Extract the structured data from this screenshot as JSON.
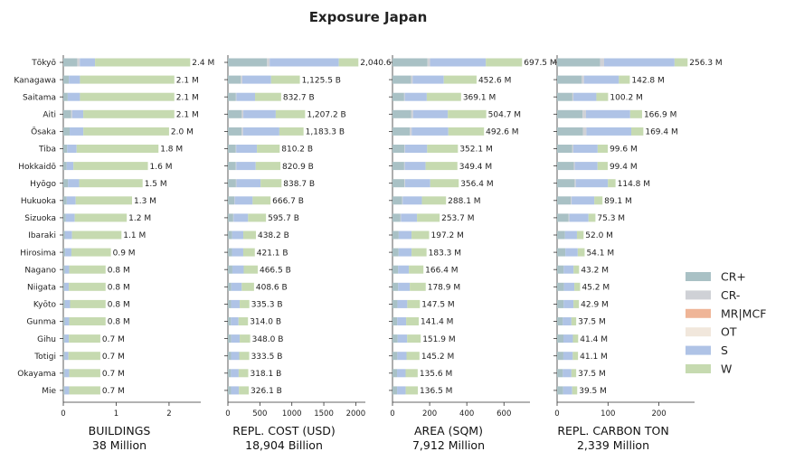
{
  "chart_data": {
    "type": "bar",
    "orientation": "horizontal",
    "stacked": true,
    "title": "Exposure Japan",
    "categories": [
      "Tōkyō",
      "Kanagawa",
      "Saitama",
      "Aiti",
      "Ōsaka",
      "Tiba",
      "Hokkaidō",
      "Hyōgo",
      "Hukuoka",
      "Sizuoka",
      "Ibaraki",
      "Hirosima",
      "Nagano",
      "Niigata",
      "Kyōto",
      "Gunma",
      "Gihu",
      "Totigi",
      "Okayama",
      "Mie"
    ],
    "legend": {
      "placement": "right",
      "entries": [
        {
          "name": "CR+",
          "color": "#a9c1c5"
        },
        {
          "name": "CR-",
          "color": "#cfd1d6"
        },
        {
          "name": "MR|MCF",
          "color": "#efb597"
        },
        {
          "name": "OT",
          "color": "#f1e7dc"
        },
        {
          "name": "S",
          "color": "#afc3e6"
        },
        {
          "name": "W",
          "color": "#c6dab0"
        }
      ]
    },
    "panels": [
      {
        "xlabel": "BUILDINGS",
        "total": "38 Million",
        "xlim": [
          0,
          2.6
        ],
        "xticks": [
          0,
          1,
          2
        ],
        "totals": [
          2.4,
          2.1,
          2.1,
          2.1,
          2.0,
          1.8,
          1.6,
          1.5,
          1.3,
          1.2,
          1.1,
          0.9,
          0.8,
          0.8,
          0.8,
          0.8,
          0.7,
          0.7,
          0.7,
          0.7
        ],
        "labels": [
          "2.4 M",
          "2.1 M",
          "2.1 M",
          "2.1 M",
          "2.0 M",
          "1.8 M",
          "1.6 M",
          "1.5 M",
          "1.3 M",
          "1.2 M",
          "1.1 M",
          "0.9 M",
          "0.8 M",
          "0.8 M",
          "0.8 M",
          "0.8 M",
          "0.7 M",
          "0.7 M",
          "0.7 M",
          "0.7 M"
        ],
        "shares": [
          [
            0.11,
            0.02,
            0.0,
            0.0,
            0.12,
            0.75
          ],
          [
            0.05,
            0.0,
            0.0,
            0.0,
            0.1,
            0.85
          ],
          [
            0.04,
            0.0,
            0.0,
            0.0,
            0.11,
            0.85
          ],
          [
            0.07,
            0.01,
            0.0,
            0.0,
            0.1,
            0.82
          ],
          [
            0.06,
            0.0,
            0.0,
            0.0,
            0.13,
            0.81
          ],
          [
            0.04,
            0.0,
            0.0,
            0.0,
            0.1,
            0.86
          ],
          [
            0.04,
            0.0,
            0.0,
            0.0,
            0.08,
            0.88
          ],
          [
            0.06,
            0.0,
            0.0,
            0.0,
            0.14,
            0.8
          ],
          [
            0.05,
            0.0,
            0.0,
            0.0,
            0.13,
            0.82
          ],
          [
            0.04,
            0.0,
            0.0,
            0.0,
            0.14,
            0.82
          ],
          [
            0.03,
            0.0,
            0.0,
            0.0,
            0.12,
            0.85
          ],
          [
            0.04,
            0.0,
            0.0,
            0.0,
            0.13,
            0.83
          ],
          [
            0.04,
            0.0,
            0.0,
            0.0,
            0.1,
            0.86
          ],
          [
            0.03,
            0.0,
            0.0,
            0.0,
            0.1,
            0.87
          ],
          [
            0.04,
            0.0,
            0.0,
            0.0,
            0.12,
            0.84
          ],
          [
            0.04,
            0.0,
            0.0,
            0.0,
            0.1,
            0.86
          ],
          [
            0.04,
            0.0,
            0.0,
            0.0,
            0.11,
            0.85
          ],
          [
            0.04,
            0.0,
            0.0,
            0.0,
            0.1,
            0.86
          ],
          [
            0.04,
            0.0,
            0.0,
            0.0,
            0.12,
            0.84
          ],
          [
            0.04,
            0.0,
            0.0,
            0.0,
            0.12,
            0.84
          ]
        ]
      },
      {
        "xlabel": "REPL. COST (USD)",
        "total": "18,904 Billion",
        "xlim": [
          0,
          2150
        ],
        "xticks": [
          0,
          500,
          1000,
          1500,
          2000
        ],
        "totals": [
          2040.6,
          1125.5,
          832.7,
          1207.2,
          1183.3,
          810.2,
          820.9,
          838.7,
          666.7,
          595.7,
          438.2,
          421.1,
          466.5,
          408.6,
          335.3,
          314.0,
          348.0,
          333.5,
          318.1,
          326.1
        ],
        "labels": [
          "2,040.6",
          "1,125.5 B",
          "832.7 B",
          "1,207.2 B",
          "1,183.3 B",
          "810.2 B",
          "820.9 B",
          "838.7 B",
          "666.7 B",
          "595.7 B",
          "438.2 B",
          "421.1 B",
          "466.5 B",
          "408.6 B",
          "335.3 B",
          "314.0 B",
          "348.0 B",
          "333.5 B",
          "318.1 B",
          "326.1 B"
        ],
        "shares": [
          [
            0.3,
            0.02,
            0.0,
            0.0,
            0.53,
            0.15
          ],
          [
            0.18,
            0.02,
            0.0,
            0.0,
            0.4,
            0.4
          ],
          [
            0.15,
            0.01,
            0.0,
            0.0,
            0.35,
            0.49
          ],
          [
            0.18,
            0.02,
            0.0,
            0.0,
            0.42,
            0.38
          ],
          [
            0.18,
            0.02,
            0.0,
            0.0,
            0.48,
            0.32
          ],
          [
            0.15,
            0.01,
            0.0,
            0.0,
            0.4,
            0.44
          ],
          [
            0.15,
            0.01,
            0.0,
            0.0,
            0.37,
            0.47
          ],
          [
            0.15,
            0.01,
            0.0,
            0.0,
            0.45,
            0.39
          ],
          [
            0.15,
            0.01,
            0.0,
            0.0,
            0.42,
            0.42
          ],
          [
            0.14,
            0.01,
            0.0,
            0.0,
            0.38,
            0.47
          ],
          [
            0.15,
            0.0,
            0.0,
            0.0,
            0.4,
            0.45
          ],
          [
            0.15,
            0.0,
            0.0,
            0.0,
            0.42,
            0.43
          ],
          [
            0.15,
            0.0,
            0.0,
            0.0,
            0.38,
            0.47
          ],
          [
            0.13,
            0.0,
            0.0,
            0.0,
            0.4,
            0.47
          ],
          [
            0.15,
            0.0,
            0.0,
            0.0,
            0.4,
            0.45
          ],
          [
            0.15,
            0.0,
            0.0,
            0.0,
            0.38,
            0.47
          ],
          [
            0.15,
            0.0,
            0.0,
            0.0,
            0.38,
            0.47
          ],
          [
            0.15,
            0.0,
            0.0,
            0.0,
            0.38,
            0.47
          ],
          [
            0.15,
            0.0,
            0.0,
            0.0,
            0.38,
            0.47
          ],
          [
            0.15,
            0.0,
            0.0,
            0.0,
            0.38,
            0.47
          ]
        ]
      },
      {
        "xlabel": "AREA (SQM)",
        "total": "7,912 Million",
        "xlim": [
          0,
          740
        ],
        "xticks": [
          0,
          200,
          400,
          600
        ],
        "totals": [
          697.5,
          452.6,
          369.1,
          504.7,
          492.6,
          352.1,
          349.4,
          356.4,
          288.1,
          253.7,
          197.2,
          183.3,
          166.4,
          178.9,
          147.5,
          141.4,
          151.9,
          145.2,
          135.6,
          136.5
        ],
        "labels": [
          "697.5 M",
          "452.6 M",
          "369.1 M",
          "504.7 M",
          "492.6 M",
          "352.1 M",
          "349.4 M",
          "356.4 M",
          "288.1 M",
          "253.7 M",
          "197.2 M",
          "183.3 M",
          "166.4 M",
          "178.9 M",
          "147.5 M",
          "141.4 M",
          "151.9 M",
          "145.2 M",
          "135.6 M",
          "136.5 M"
        ],
        "shares": [
          [
            0.27,
            0.02,
            0.0,
            0.0,
            0.43,
            0.28
          ],
          [
            0.22,
            0.02,
            0.0,
            0.0,
            0.37,
            0.39
          ],
          [
            0.17,
            0.01,
            0.0,
            0.0,
            0.32,
            0.5
          ],
          [
            0.2,
            0.02,
            0.0,
            0.0,
            0.37,
            0.41
          ],
          [
            0.19,
            0.02,
            0.0,
            0.0,
            0.4,
            0.39
          ],
          [
            0.18,
            0.01,
            0.0,
            0.0,
            0.34,
            0.47
          ],
          [
            0.18,
            0.01,
            0.0,
            0.0,
            0.32,
            0.49
          ],
          [
            0.18,
            0.01,
            0.0,
            0.0,
            0.38,
            0.43
          ],
          [
            0.18,
            0.01,
            0.0,
            0.0,
            0.36,
            0.45
          ],
          [
            0.17,
            0.01,
            0.0,
            0.0,
            0.34,
            0.48
          ],
          [
            0.17,
            0.0,
            0.0,
            0.0,
            0.35,
            0.48
          ],
          [
            0.18,
            0.0,
            0.0,
            0.0,
            0.38,
            0.44
          ],
          [
            0.18,
            0.0,
            0.0,
            0.0,
            0.35,
            0.47
          ],
          [
            0.17,
            0.0,
            0.0,
            0.0,
            0.35,
            0.48
          ],
          [
            0.18,
            0.0,
            0.0,
            0.0,
            0.36,
            0.46
          ],
          [
            0.18,
            0.0,
            0.0,
            0.0,
            0.34,
            0.48
          ],
          [
            0.18,
            0.0,
            0.0,
            0.0,
            0.34,
            0.48
          ],
          [
            0.18,
            0.0,
            0.0,
            0.0,
            0.34,
            0.48
          ],
          [
            0.18,
            0.0,
            0.0,
            0.0,
            0.34,
            0.48
          ],
          [
            0.18,
            0.0,
            0.0,
            0.0,
            0.34,
            0.48
          ]
        ]
      },
      {
        "xlabel": "REPL. CARBON TON",
        "total": "2,339 Million",
        "xlim": [
          0,
          270
        ],
        "xticks": [
          0,
          100,
          200
        ],
        "totals": [
          256.3,
          142.8,
          100.2,
          166.9,
          169.4,
          99.6,
          99.4,
          114.8,
          89.1,
          75.3,
          52.0,
          54.1,
          43.2,
          45.2,
          42.9,
          37.5,
          41.4,
          41.1,
          37.5,
          39.5
        ],
        "labels": [
          "256.3 M",
          "142.8 M",
          "100.2 M",
          "166.9 M",
          "169.4 M",
          "99.6 M",
          "99.4 M",
          "114.8 M",
          "89.1 M",
          "75.3 M",
          "52.0 M",
          "54.1 M",
          "43.2 M",
          "45.2 M",
          "42.9 M",
          "37.5 M",
          "41.4 M",
          "41.1 M",
          "37.5 M",
          "39.5 M"
        ],
        "shares": [
          [
            0.33,
            0.03,
            0.0,
            0.0,
            0.54,
            0.1
          ],
          [
            0.34,
            0.03,
            0.0,
            0.0,
            0.48,
            0.15
          ],
          [
            0.3,
            0.02,
            0.0,
            0.0,
            0.45,
            0.23
          ],
          [
            0.3,
            0.04,
            0.0,
            0.0,
            0.52,
            0.14
          ],
          [
            0.3,
            0.04,
            0.0,
            0.0,
            0.52,
            0.14
          ],
          [
            0.3,
            0.02,
            0.0,
            0.0,
            0.48,
            0.2
          ],
          [
            0.33,
            0.02,
            0.0,
            0.0,
            0.45,
            0.2
          ],
          [
            0.3,
            0.02,
            0.0,
            0.0,
            0.55,
            0.13
          ],
          [
            0.3,
            0.02,
            0.0,
            0.0,
            0.5,
            0.18
          ],
          [
            0.3,
            0.02,
            0.0,
            0.0,
            0.5,
            0.18
          ],
          [
            0.3,
            0.0,
            0.0,
            0.0,
            0.45,
            0.25
          ],
          [
            0.3,
            0.0,
            0.0,
            0.0,
            0.45,
            0.25
          ],
          [
            0.3,
            0.0,
            0.0,
            0.0,
            0.45,
            0.25
          ],
          [
            0.3,
            0.0,
            0.0,
            0.0,
            0.45,
            0.25
          ],
          [
            0.3,
            0.0,
            0.0,
            0.0,
            0.45,
            0.25
          ],
          [
            0.3,
            0.0,
            0.0,
            0.0,
            0.45,
            0.25
          ],
          [
            0.3,
            0.0,
            0.0,
            0.0,
            0.45,
            0.25
          ],
          [
            0.3,
            0.0,
            0.0,
            0.0,
            0.45,
            0.25
          ],
          [
            0.3,
            0.0,
            0.0,
            0.0,
            0.45,
            0.25
          ],
          [
            0.3,
            0.0,
            0.0,
            0.0,
            0.45,
            0.25
          ]
        ]
      }
    ]
  }
}
